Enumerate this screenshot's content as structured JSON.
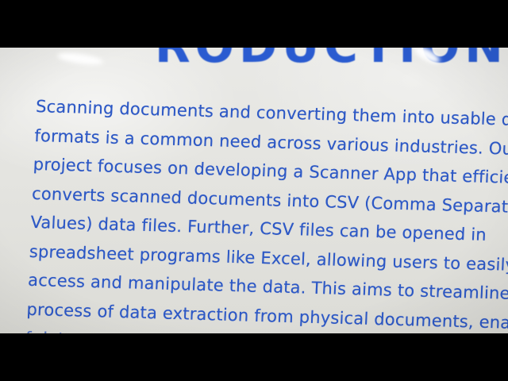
{
  "document": {
    "heading_fragment": "RODUCTION",
    "lines": [
      "Scanning documents and converting them into usable dat",
      "formats is a common need across various industries. Our",
      "project focuses on developing a Scanner App that efficien",
      "converts scanned documents into CSV (Comma Separated",
      "Values) data files. Further, CSV files can be opened in",
      "spreadsheet programs like Excel, allowing users to easily",
      "access and manipulate the data. This aims to streamline th",
      "process of data extraction from physical documents, enab",
      "f                              data entry for businesses and"
    ]
  },
  "colors": {
    "text": "#2c58c6",
    "paper": "#e6e6e2",
    "letterbox": "#000000"
  }
}
